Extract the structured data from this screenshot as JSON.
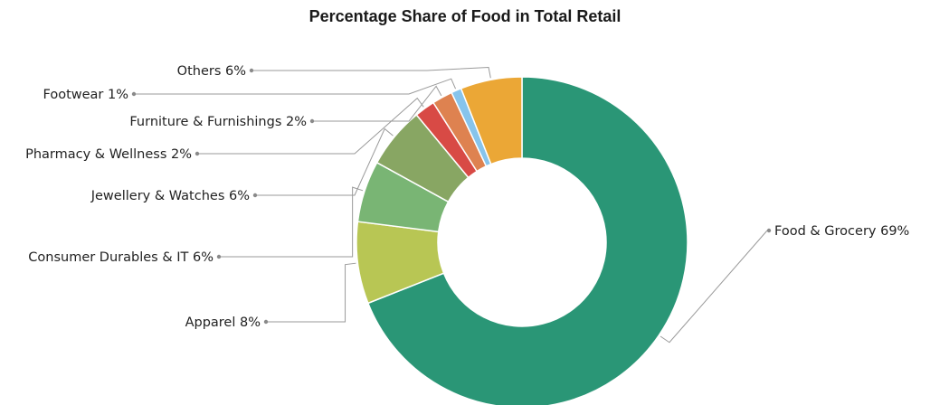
{
  "chart_data": {
    "type": "pie",
    "title": "Percentage Share of Food in Total Retail",
    "categories": [
      "Food & Grocery",
      "Apparel",
      "Consumer Durables & IT",
      "Jewellery & Watches",
      "Pharmacy & Wellness",
      "Furniture & Furnishings",
      "Footwear",
      "Others"
    ],
    "values": [
      69,
      8,
      6,
      6,
      2,
      2,
      1,
      6
    ],
    "labels": [
      "Food & Grocery 69%",
      "Apparel 8%",
      "Consumer Durables & IT 6%",
      "Jewellery & Watches 6%",
      "Pharmacy & Wellness 2%",
      "Furniture & Furnishings 2%",
      "Footwear 1%",
      "Others 6%"
    ],
    "colors": [
      "#2a9676",
      "#b8c654",
      "#79b574",
      "#88a663",
      "#d84a45",
      "#de8250",
      "#87c4ec",
      "#eba736"
    ],
    "style": "donut",
    "legend": "none"
  }
}
